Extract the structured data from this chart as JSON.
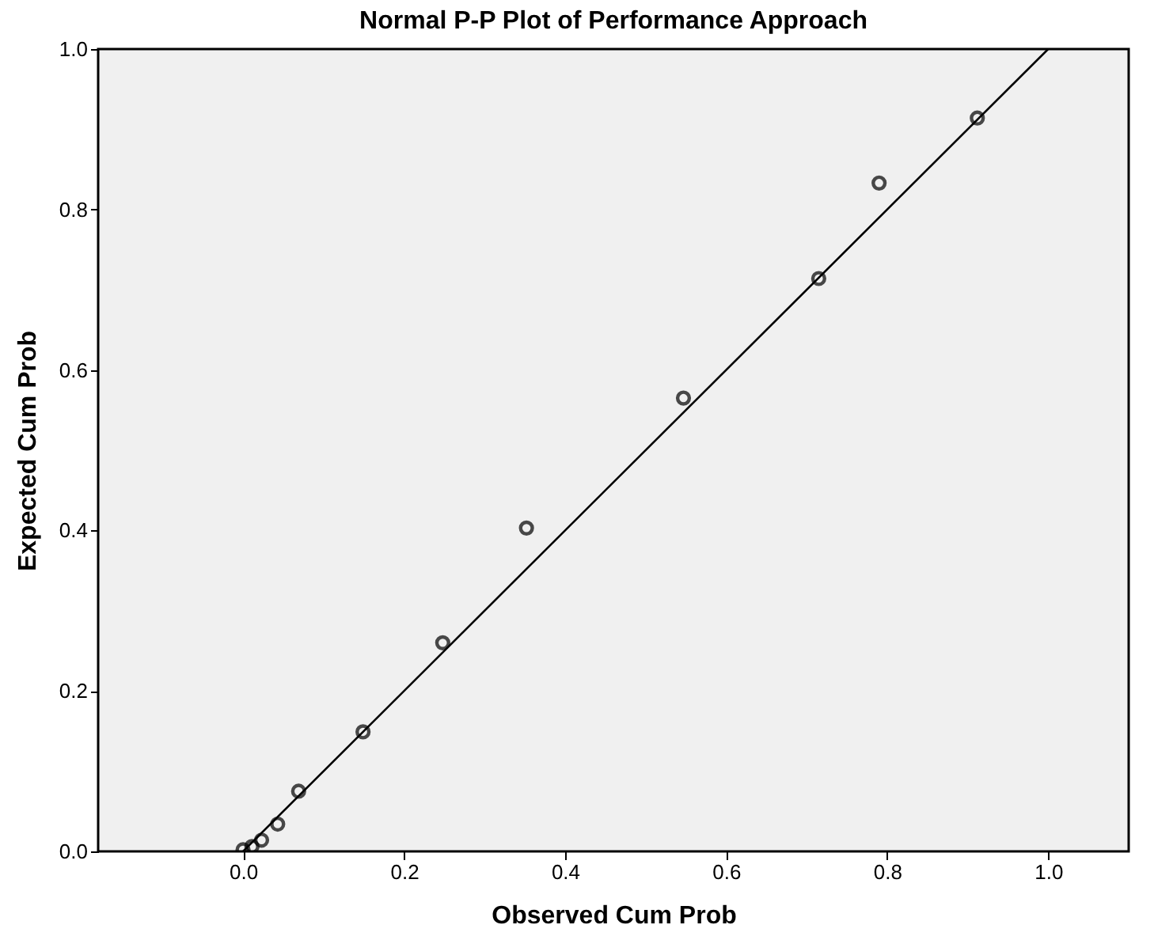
{
  "chart_data": {
    "type": "scatter",
    "title": "Normal P-P Plot of Performance Approach",
    "xlabel": "Observed Cum Prob",
    "ylabel": "Expected Cum Prob",
    "xlim": [
      -0.18,
      1.1
    ],
    "ylim": [
      0,
      1
    ],
    "xticks": [
      {
        "value": 0,
        "label": "0.0"
      },
      {
        "value": 0.2,
        "label": "0.2"
      },
      {
        "value": 0.4,
        "label": "0.4"
      },
      {
        "value": 0.6,
        "label": "0.6"
      },
      {
        "value": 0.8,
        "label": "0.8"
      },
      {
        "value": 1,
        "label": "1.0"
      }
    ],
    "yticks": [
      {
        "value": 0,
        "label": "0.0"
      },
      {
        "value": 0.2,
        "label": "0.2"
      },
      {
        "value": 0.4,
        "label": "0.4"
      },
      {
        "value": 0.6,
        "label": "0.6"
      },
      {
        "value": 0.8,
        "label": "0.8"
      },
      {
        "value": 1,
        "label": "1.0"
      }
    ],
    "grid": false,
    "series": [
      {
        "marker": "circle",
        "color": "#000000",
        "x": [
          0.0,
          0.011,
          0.023,
          0.043,
          0.069,
          0.149,
          0.248,
          0.352,
          0.547,
          0.715,
          0.79,
          0.912
        ],
        "values": [
          0.002,
          0.006,
          0.014,
          0.034,
          0.075,
          0.149,
          0.26,
          0.403,
          0.565,
          0.714,
          0.833,
          0.914
        ]
      },
      {
        "type": "line",
        "marker": "none",
        "color": "#000000",
        "line_style": "solid",
        "x": [
          0,
          1
        ],
        "values": [
          0,
          1
        ]
      }
    ]
  }
}
